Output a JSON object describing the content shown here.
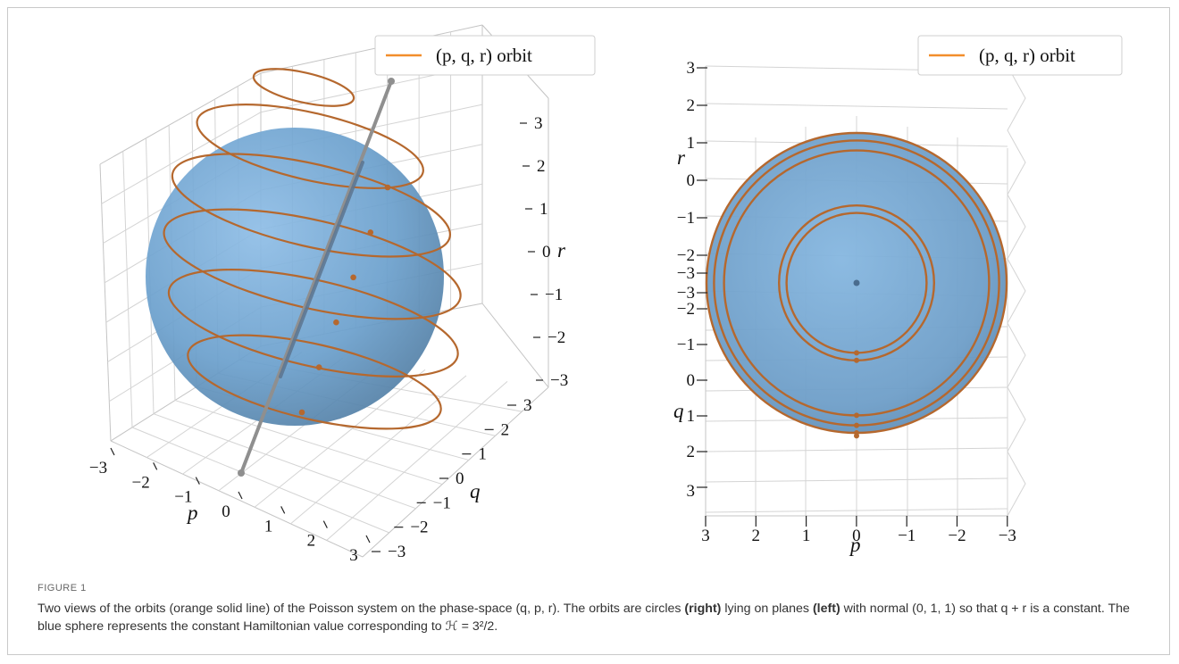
{
  "figure": {
    "label": "FIGURE 1",
    "caption_parts": [
      {
        "text": "Two views of the orbits (orange solid line) of the Poisson system on the phase-space (q, p, r). The orbits are circles ",
        "bold": false
      },
      {
        "text": "(right)",
        "bold": true
      },
      {
        "text": " lying on planes ",
        "bold": false
      },
      {
        "text": "(left)",
        "bold": true
      },
      {
        "text": " with normal (0, 1, 1) so that q + r is a constant. The blue sphere represents the constant Hamiltonian value corresponding to ℋ = 3²/2.",
        "bold": false
      }
    ]
  },
  "colors": {
    "orbit": "#b5682e",
    "legend_orbit": "#f28e2b",
    "sphere": "#6fa6d3",
    "axis_line": "#8f8f8f",
    "grid": "#d4d4d4"
  },
  "chart_data": [
    {
      "type": "scatter",
      "view": "3d-perspective",
      "legend": {
        "label": "(p, q, r) orbit",
        "placement": "top-right"
      },
      "axes": {
        "p": {
          "label": "p",
          "ticks": [
            "−3",
            "−2",
            "−1",
            "0",
            "1",
            "2",
            "3"
          ],
          "range": [
            -3,
            3
          ]
        },
        "q": {
          "label": "q",
          "ticks": [
            "−3",
            "−2",
            "−1",
            "0",
            "1",
            "2",
            "3"
          ],
          "range": [
            -3,
            3
          ]
        },
        "r": {
          "label": "r",
          "ticks": [
            "3",
            "2",
            "1",
            "0",
            "−1",
            "−2",
            "−3"
          ],
          "range": [
            -3,
            3
          ]
        }
      },
      "grid": true,
      "sphere_radius": 3,
      "axis_direction": [
        0,
        1,
        1
      ],
      "orbit_planes_q_plus_r": [
        3.3,
        2.0,
        0.7,
        -0.6,
        -1.9,
        -3.2
      ],
      "orbit_center_markers": 6
    },
    {
      "type": "scatter",
      "view": "3d-top-along-normal",
      "legend": {
        "label": "(p, q, r) orbit",
        "placement": "top-right"
      },
      "axes": {
        "p": {
          "label": "p",
          "ticks": [
            "3",
            "2",
            "1",
            "0",
            "−1",
            "−2",
            "−3"
          ],
          "range": [
            3,
            -3
          ]
        },
        "q": {
          "label": "q",
          "ticks": [
            "−3",
            "−2",
            "−1",
            "0",
            "1",
            "2",
            "3"
          ],
          "range": [
            -3,
            3
          ]
        },
        "r": {
          "label": "r",
          "ticks": [
            "3",
            "2",
            "1",
            "0",
            "−1",
            "−2",
            "−3"
          ],
          "range": [
            3,
            -3
          ]
        }
      },
      "grid": true,
      "sphere_radius": 3,
      "orbit_radii": [
        3.0,
        2.85,
        2.65,
        1.55,
        1.4
      ],
      "orbit_markers": 6
    }
  ]
}
